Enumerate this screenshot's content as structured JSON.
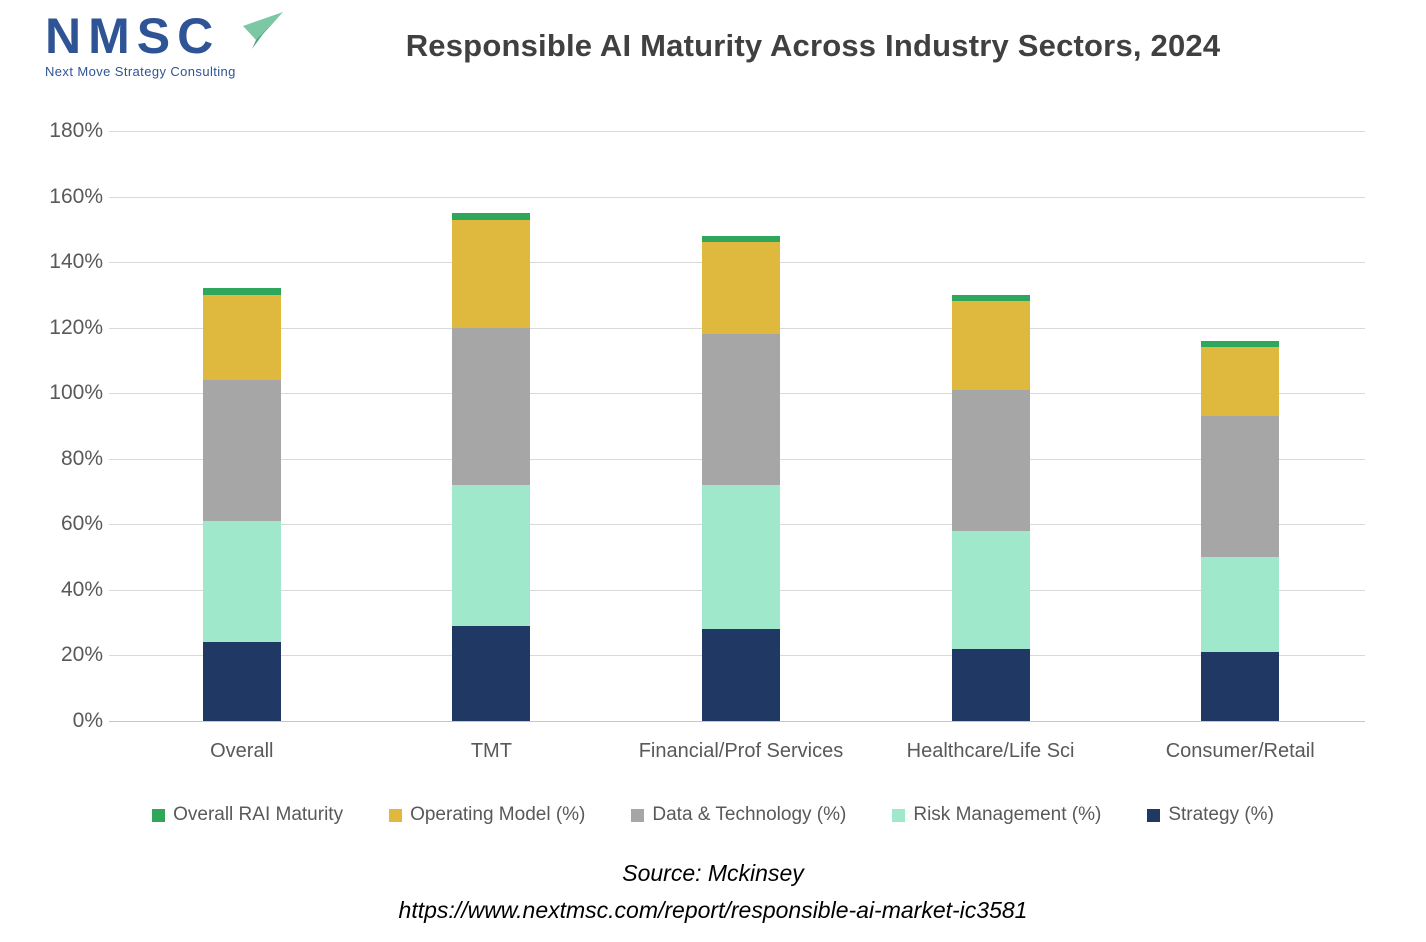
{
  "logo": {
    "acronym": "NMSC",
    "tagline": "Next Move Strategy Consulting",
    "brand_color": "#2F5496",
    "plane_light": "#7CC8A5",
    "plane_dark": "#4E9E7F"
  },
  "header": {
    "title": "Responsible AI Maturity Across Industry Sectors, 2024"
  },
  "chart_data": {
    "type": "bar",
    "stacked": true,
    "title": "Responsible AI Maturity Across Industry Sectors, 2024",
    "xlabel": "",
    "ylabel": "",
    "ylim": [
      0,
      180
    ],
    "ytick_step": 20,
    "yticks": [
      "0%",
      "20%",
      "40%",
      "60%",
      "80%",
      "100%",
      "120%",
      "140%",
      "160%",
      "180%"
    ],
    "grid": true,
    "legend_position": "bottom",
    "categories": [
      "Overall",
      "TMT",
      "Financial/Prof Services",
      "Healthcare/Life Sci",
      "Consumer/Retail"
    ],
    "series": [
      {
        "name": "Strategy (%)",
        "color": "#1F3864",
        "values": [
          24,
          29,
          28,
          22,
          21
        ]
      },
      {
        "name": "Risk Management (%)",
        "color": "#A0E8CC",
        "values": [
          37,
          43,
          44,
          36,
          29
        ]
      },
      {
        "name": "Data & Technology (%)",
        "color": "#A6A6A6",
        "values": [
          43,
          48,
          46,
          43,
          43
        ]
      },
      {
        "name": "Operating Model (%)",
        "color": "#DFB83E",
        "values": [
          26,
          33,
          28,
          27,
          21
        ]
      },
      {
        "name": "Overall RAI Maturity",
        "color": "#2EA65C",
        "values": [
          2,
          2,
          2,
          2,
          2
        ]
      }
    ],
    "totals": [
      132,
      155,
      148,
      130,
      116
    ],
    "legend_order_note": "legend shown reversed: Overall RAI Maturity, Operating Model (%), Data & Technology (%), Risk Management (%), Strategy (%)",
    "gridline_color": "#D9D9D9",
    "axis_line_color": "#C6C6C6",
    "tick_label_color": "#595959"
  },
  "footer": {
    "source": "Source: Mckinsey",
    "url": "https://www.nextmsc.com/report/responsible-ai-market-ic3581"
  }
}
